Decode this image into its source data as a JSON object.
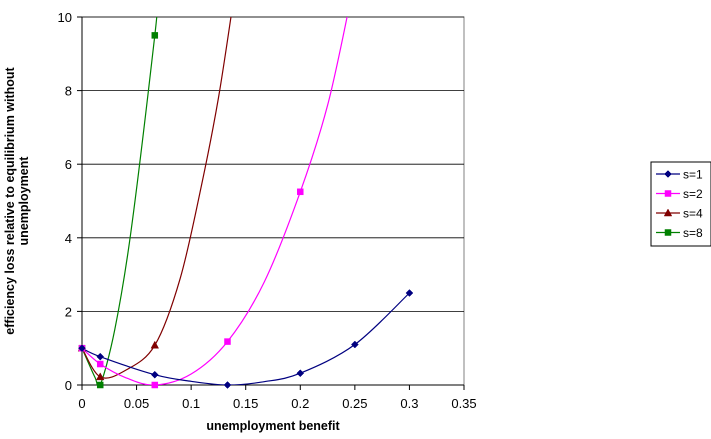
{
  "chart_data": {
    "type": "line",
    "title": "",
    "xlabel": "unemployment benefit",
    "ylabel_lines": [
      "efficiency loss relative to equilibrium without",
      "unemployment"
    ],
    "xlim": [
      0,
      0.35
    ],
    "ylim": [
      0,
      10
    ],
    "x_ticks": [
      "0",
      "0.05",
      "0.1",
      "0.15",
      "0.2",
      "0.25",
      "0.3",
      "0.35"
    ],
    "y_ticks": [
      "0",
      "2",
      "4",
      "6",
      "8",
      "10"
    ],
    "grid": "horizontal major gridlines",
    "legend_position": "right",
    "series": [
      {
        "name": "s=1",
        "color": "#000080",
        "marker": "diamond",
        "points": [
          [
            0,
            1.0
          ],
          [
            0.0167,
            0.77
          ],
          [
            0.0667,
            0.28
          ],
          [
            0.1333,
            0.0
          ],
          [
            0.2,
            0.32
          ],
          [
            0.25,
            1.1
          ],
          [
            0.3,
            2.5
          ]
        ],
        "curve": [
          [
            0,
            1.0
          ],
          [
            0.0167,
            0.77
          ],
          [
            0.0667,
            0.28
          ],
          [
            0.1,
            0.1
          ],
          [
            0.1333,
            0.0
          ],
          [
            0.167,
            0.09
          ],
          [
            0.2,
            0.32
          ],
          [
            0.25,
            1.1
          ],
          [
            0.3,
            2.5
          ]
        ]
      },
      {
        "name": "s=2",
        "color": "#ff00ff",
        "marker": "square",
        "points": [
          [
            0,
            1.0
          ],
          [
            0.0167,
            0.57
          ],
          [
            0.0667,
            0.0
          ],
          [
            0.1333,
            1.18
          ],
          [
            0.2,
            5.25
          ]
        ],
        "curve": [
          [
            0,
            1.0
          ],
          [
            0.0167,
            0.57
          ],
          [
            0.04,
            0.2
          ],
          [
            0.0667,
            0.0
          ],
          [
            0.1,
            0.3
          ],
          [
            0.1333,
            1.18
          ],
          [
            0.167,
            2.8
          ],
          [
            0.2,
            5.25
          ],
          [
            0.225,
            7.6
          ],
          [
            0.245,
            10.3
          ]
        ]
      },
      {
        "name": "s=4",
        "color": "#800000",
        "marker": "triangle",
        "points": [
          [
            0,
            1.0
          ],
          [
            0.0167,
            0.22
          ],
          [
            0.0667,
            1.08
          ]
        ],
        "curve": [
          [
            0,
            1.0
          ],
          [
            0.0167,
            0.22
          ],
          [
            0.04,
            0.4
          ],
          [
            0.0667,
            1.08
          ],
          [
            0.09,
            2.9
          ],
          [
            0.11,
            5.5
          ],
          [
            0.125,
            7.8
          ],
          [
            0.1375,
            10.2
          ]
        ]
      },
      {
        "name": "s=8",
        "color": "#008000",
        "marker": "square",
        "points": [
          [
            0,
            1.0
          ],
          [
            0.0167,
            0.0
          ],
          [
            0.0667,
            9.5
          ]
        ],
        "curve": [
          [
            0,
            1.0
          ],
          [
            0.012,
            0.2
          ],
          [
            0.0167,
            0.0
          ],
          [
            0.03,
            1.5
          ],
          [
            0.045,
            4.2
          ],
          [
            0.0667,
            9.5
          ],
          [
            0.0685,
            10.3
          ]
        ]
      }
    ]
  }
}
